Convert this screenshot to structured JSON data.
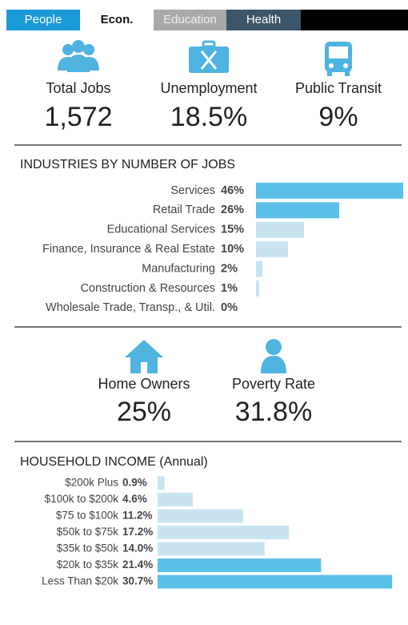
{
  "tabs": [
    "People",
    "Econ.",
    "Education",
    "Health"
  ],
  "stats_top": [
    {
      "label": "Total Jobs",
      "value": "1,572"
    },
    {
      "label": "Unemployment",
      "value": "18.5%"
    },
    {
      "label": "Public Transit",
      "value": "9%"
    }
  ],
  "industries": {
    "title": "INDUSTRIES BY NUMBER OF JOBS",
    "rows": [
      {
        "name": "Services",
        "value": 46,
        "value_label": "46%",
        "color": "#5bc0e8"
      },
      {
        "name": "Retail Trade",
        "value": 26,
        "value_label": "26%",
        "color": "#5bc0e8"
      },
      {
        "name": "Educational Services",
        "value": 15,
        "value_label": "15%",
        "color": "#c7e4f0"
      },
      {
        "name": "Finance, Insurance & Real Estate",
        "value": 10,
        "value_label": "10%",
        "color": "#c7e4f0"
      },
      {
        "name": "Manufacturing",
        "value": 2,
        "value_label": "2%",
        "color": "#c7e4f0"
      },
      {
        "name": "Construction & Resources",
        "value": 1,
        "value_label": "1%",
        "color": "#c7e4f0"
      },
      {
        "name": "Wholesale Trade, Transp., & Util.",
        "value": 0,
        "value_label": "0%",
        "color": "#c7e4f0"
      }
    ]
  },
  "stats_mid": [
    {
      "label": "Home Owners",
      "value": "25%"
    },
    {
      "label": "Poverty Rate",
      "value": "31.8%"
    }
  ],
  "income": {
    "title": "HOUSEHOLD INCOME (Annual)",
    "rows": [
      {
        "name": "$200k Plus",
        "value": 0.9,
        "value_label": "0.9%",
        "color": "#c7e4f0"
      },
      {
        "name": "$100k to $200k",
        "value": 4.6,
        "value_label": "4.6%",
        "color": "#c7e4f0"
      },
      {
        "name": "$75 to $100k",
        "value": 11.2,
        "value_label": "11.2%",
        "color": "#c7e4f0"
      },
      {
        "name": "$50k to $75k",
        "value": 17.2,
        "value_label": "17.2%",
        "color": "#c7e4f0"
      },
      {
        "name": "$35k to $50k",
        "value": 14.0,
        "value_label": "14.0%",
        "color": "#c7e4f0"
      },
      {
        "name": "$20k to $35k",
        "value": 21.4,
        "value_label": "21.4%",
        "color": "#5bc0e8"
      },
      {
        "name": "Less Than $20k",
        "value": 30.7,
        "value_label": "30.7%",
        "color": "#5bc0e8"
      }
    ]
  }
}
